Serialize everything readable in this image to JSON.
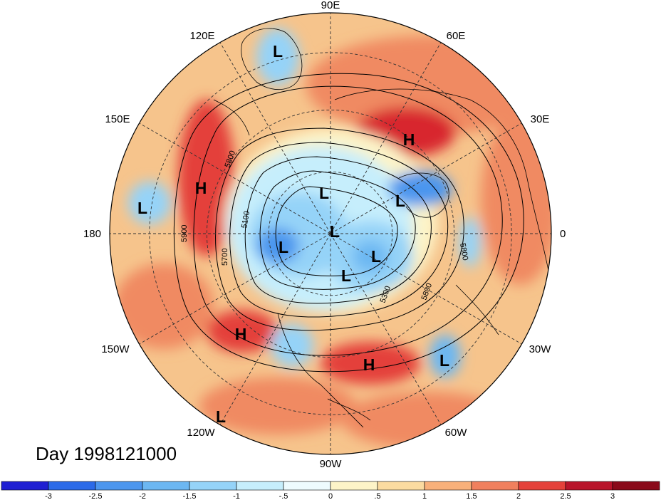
{
  "title": "Day 1998121000",
  "longitude_labels": [
    "90E",
    "60E",
    "30E",
    "0",
    "30W",
    "60W",
    "90W",
    "120W",
    "150W",
    "180",
    "150E",
    "120E"
  ],
  "pressure_centers": [
    {
      "type": "L",
      "name": "low-east-siberia"
    },
    {
      "type": "H",
      "name": "high-caspian"
    },
    {
      "type": "L",
      "name": "low-scandinavia"
    },
    {
      "type": "H",
      "name": "high-east-asia"
    },
    {
      "type": "L",
      "name": "low-west-pacific"
    },
    {
      "type": "L",
      "name": "low-polar-1"
    },
    {
      "type": "L",
      "name": "low-polar-2"
    },
    {
      "type": "L",
      "name": "low-polar-3"
    },
    {
      "type": "L",
      "name": "low-baffin"
    },
    {
      "type": "L",
      "name": "low-labrador"
    },
    {
      "type": "H",
      "name": "high-northeast-pacific"
    },
    {
      "type": "H",
      "name": "high-west-atlantic"
    },
    {
      "type": "L",
      "name": "low-mid-atlantic"
    },
    {
      "type": "L",
      "name": "low-east-pacific"
    }
  ],
  "contour_labels": [
    "5800",
    "5900",
    "5100",
    "5700",
    "5300",
    "5800",
    "5800"
  ],
  "colorbar": {
    "tick_labels": [
      "-3",
      "-2.5",
      "-2",
      "-1.5",
      "-1",
      "-.5",
      "0",
      ".5",
      "1",
      "1.5",
      "2",
      "2.5",
      "3"
    ],
    "colors": [
      "#1f1fd2",
      "#2b6ae8",
      "#4c96ee",
      "#6cb7f2",
      "#95d3f8",
      "#c6eefc",
      "#eefbfe",
      "#fdf4c8",
      "#fbdba0",
      "#f8b07a",
      "#f0805e",
      "#e4413a",
      "#b8142a",
      "#8a0a1a"
    ]
  }
}
